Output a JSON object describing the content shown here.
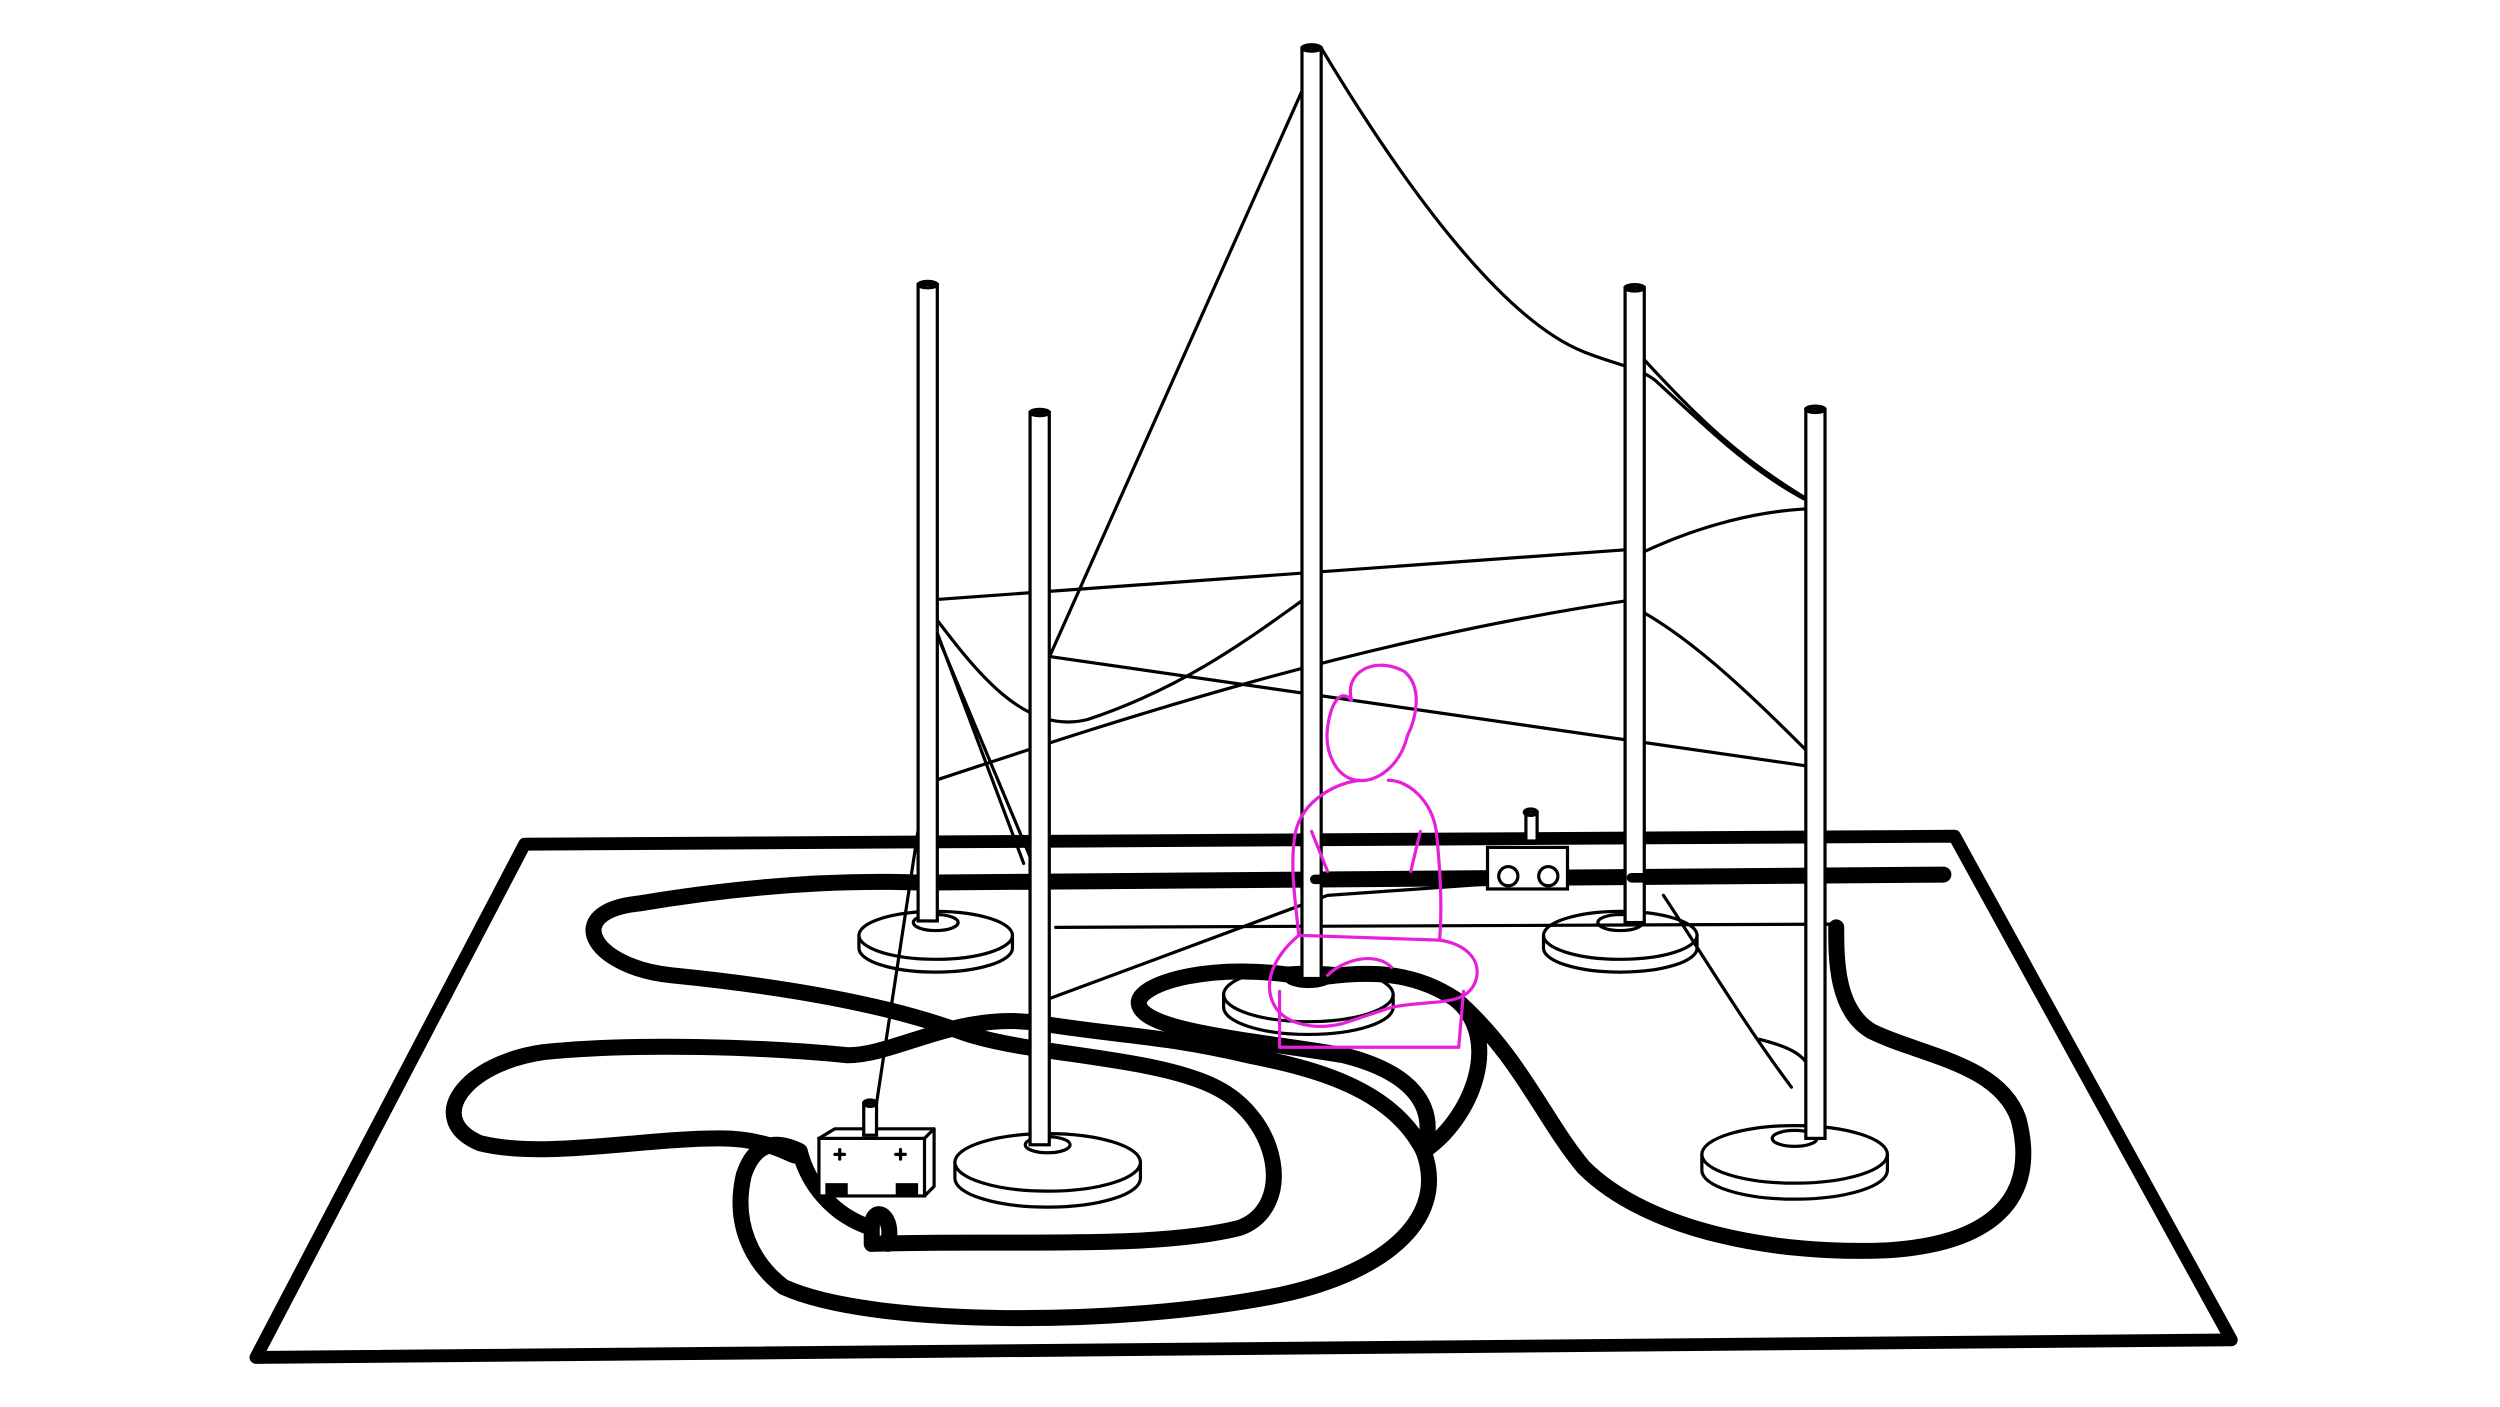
{
  "colors": {
    "background": "#ffffff",
    "line": "#000000",
    "person": "#e620d8"
  },
  "scene": {
    "mat": {
      "name": "floor-mat"
    },
    "track": {
      "name": "black-line-track"
    },
    "poles": [
      {
        "name": "pole-left-back"
      },
      {
        "name": "pole-left-front"
      },
      {
        "name": "pole-center-tall"
      },
      {
        "name": "pole-right-back"
      },
      {
        "name": "pole-right-front"
      }
    ],
    "strings": {
      "name": "string-network"
    },
    "robots": [
      {
        "name": "line-robot-left"
      },
      {
        "name": "line-robot-right"
      }
    ],
    "person": {
      "name": "seated-person"
    }
  }
}
